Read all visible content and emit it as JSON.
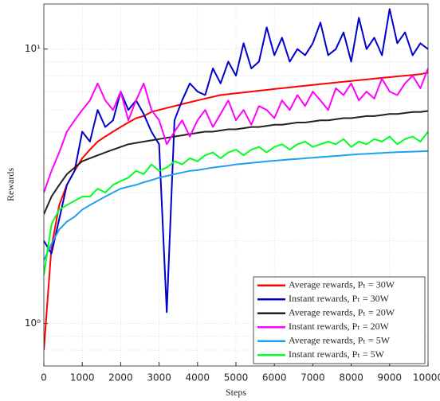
{
  "chart_data": {
    "type": "line",
    "xlabel": "Steps",
    "ylabel": "Rewards",
    "x": [
      0,
      200,
      400,
      600,
      800,
      1000,
      1200,
      1400,
      1600,
      1800,
      2000,
      2200,
      2400,
      2600,
      2800,
      3000,
      3200,
      3400,
      3600,
      3800,
      4000,
      4200,
      4400,
      4600,
      4800,
      5000,
      5200,
      5400,
      5600,
      5800,
      6000,
      6200,
      6400,
      6600,
      6800,
      7000,
      7200,
      7400,
      7600,
      7800,
      8000,
      8200,
      8400,
      8600,
      8800,
      9000,
      9200,
      9400,
      9600,
      9800,
      10000
    ],
    "series": [
      {
        "name": "Average rewards, Pₜ = 30W",
        "color": "#ff0000",
        "values": [
          0.8,
          1.9,
          2.7,
          3.2,
          3.6,
          4.0,
          4.3,
          4.6,
          4.8,
          5.0,
          5.2,
          5.4,
          5.6,
          5.7,
          5.9,
          6.0,
          6.1,
          6.2,
          6.3,
          6.4,
          6.5,
          6.6,
          6.7,
          6.8,
          6.85,
          6.9,
          6.95,
          7.0,
          7.05,
          7.1,
          7.15,
          7.2,
          7.25,
          7.3,
          7.35,
          7.4,
          7.45,
          7.5,
          7.55,
          7.6,
          7.65,
          7.7,
          7.75,
          7.8,
          7.85,
          7.9,
          7.95,
          8.0,
          8.05,
          8.1,
          8.2
        ]
      },
      {
        "name": "Instant rewards, Pₜ = 30W",
        "color": "#0000cc",
        "values": [
          2.0,
          1.8,
          2.4,
          3.2,
          3.6,
          5.0,
          4.6,
          6.0,
          5.2,
          5.5,
          7.0,
          6.0,
          6.5,
          5.8,
          5.0,
          4.5,
          1.1,
          5.5,
          6.5,
          7.5,
          7.0,
          6.8,
          8.5,
          7.5,
          9.0,
          8.0,
          10.5,
          8.5,
          9.0,
          12.0,
          9.5,
          11.0,
          9.0,
          10.0,
          9.5,
          10.5,
          12.5,
          9.5,
          10.0,
          11.5,
          9.0,
          13.0,
          10.0,
          11.0,
          9.5,
          14.0,
          10.5,
          11.5,
          9.5,
          10.5,
          10.0
        ]
      },
      {
        "name": "Average rewards, Pₜ = 20W",
        "color": "#222222",
        "values": [
          2.5,
          2.9,
          3.2,
          3.5,
          3.7,
          3.9,
          4.0,
          4.1,
          4.2,
          4.3,
          4.4,
          4.5,
          4.55,
          4.6,
          4.65,
          4.7,
          4.75,
          4.8,
          4.85,
          4.9,
          4.95,
          5.0,
          5.0,
          5.05,
          5.1,
          5.1,
          5.15,
          5.2,
          5.2,
          5.25,
          5.3,
          5.3,
          5.35,
          5.4,
          5.4,
          5.45,
          5.5,
          5.5,
          5.55,
          5.6,
          5.6,
          5.65,
          5.7,
          5.7,
          5.75,
          5.8,
          5.8,
          5.85,
          5.9,
          5.9,
          5.95
        ]
      },
      {
        "name": "Instant rewards, Pₜ = 20W",
        "color": "#ff00ff",
        "values": [
          3.0,
          3.6,
          4.2,
          5.0,
          5.5,
          6.0,
          6.5,
          7.5,
          6.5,
          6.0,
          7.0,
          5.5,
          6.5,
          7.5,
          6.0,
          5.5,
          4.5,
          5.0,
          5.5,
          4.8,
          5.5,
          6.0,
          5.2,
          5.8,
          6.5,
          5.5,
          6.0,
          5.3,
          6.2,
          6.0,
          5.6,
          6.5,
          6.0,
          6.8,
          6.2,
          7.0,
          6.5,
          6.0,
          7.2,
          6.8,
          7.5,
          6.5,
          7.0,
          6.6,
          7.8,
          7.0,
          6.8,
          7.5,
          8.0,
          7.2,
          8.5
        ]
      },
      {
        "name": "Average rewards, Pₜ = 5W",
        "color": "#22a0f0",
        "values": [
          1.7,
          1.95,
          2.2,
          2.35,
          2.45,
          2.6,
          2.7,
          2.8,
          2.9,
          3.0,
          3.1,
          3.15,
          3.2,
          3.27,
          3.33,
          3.4,
          3.45,
          3.5,
          3.55,
          3.6,
          3.62,
          3.66,
          3.7,
          3.73,
          3.76,
          3.8,
          3.82,
          3.85,
          3.87,
          3.9,
          3.92,
          3.94,
          3.96,
          3.98,
          4.0,
          4.02,
          4.04,
          4.06,
          4.08,
          4.1,
          4.12,
          4.14,
          4.15,
          4.17,
          4.18,
          4.2,
          4.21,
          4.22,
          4.23,
          4.24,
          4.25
        ]
      },
      {
        "name": "Instant rewards, Pₜ = 5W",
        "color": "#00ff22",
        "values": [
          1.5,
          2.3,
          2.6,
          2.7,
          2.8,
          2.9,
          2.9,
          3.1,
          3.0,
          3.2,
          3.3,
          3.4,
          3.6,
          3.5,
          3.8,
          3.6,
          3.7,
          3.9,
          3.8,
          4.0,
          3.9,
          4.1,
          4.2,
          4.0,
          4.2,
          4.3,
          4.1,
          4.3,
          4.4,
          4.2,
          4.4,
          4.5,
          4.3,
          4.5,
          4.6,
          4.4,
          4.5,
          4.6,
          4.5,
          4.7,
          4.4,
          4.6,
          4.5,
          4.7,
          4.6,
          4.8,
          4.5,
          4.7,
          4.8,
          4.6,
          5.0
        ]
      }
    ],
    "xlim": [
      0,
      10000
    ],
    "xticks": [
      0,
      1000,
      2000,
      3000,
      4000,
      5000,
      6000,
      7000,
      8000,
      9000,
      10000
    ],
    "ylim": [
      0.7,
      14.6
    ],
    "ylog": true,
    "yticks": [
      {
        "value": 1,
        "label": "10⁰"
      },
      {
        "value": 10,
        "label": "10¹"
      }
    ],
    "yminorticks": [
      0.8,
      0.9,
      2,
      3,
      4,
      5,
      6,
      7,
      8,
      9
    ],
    "grid": true,
    "legend": "lower right"
  }
}
